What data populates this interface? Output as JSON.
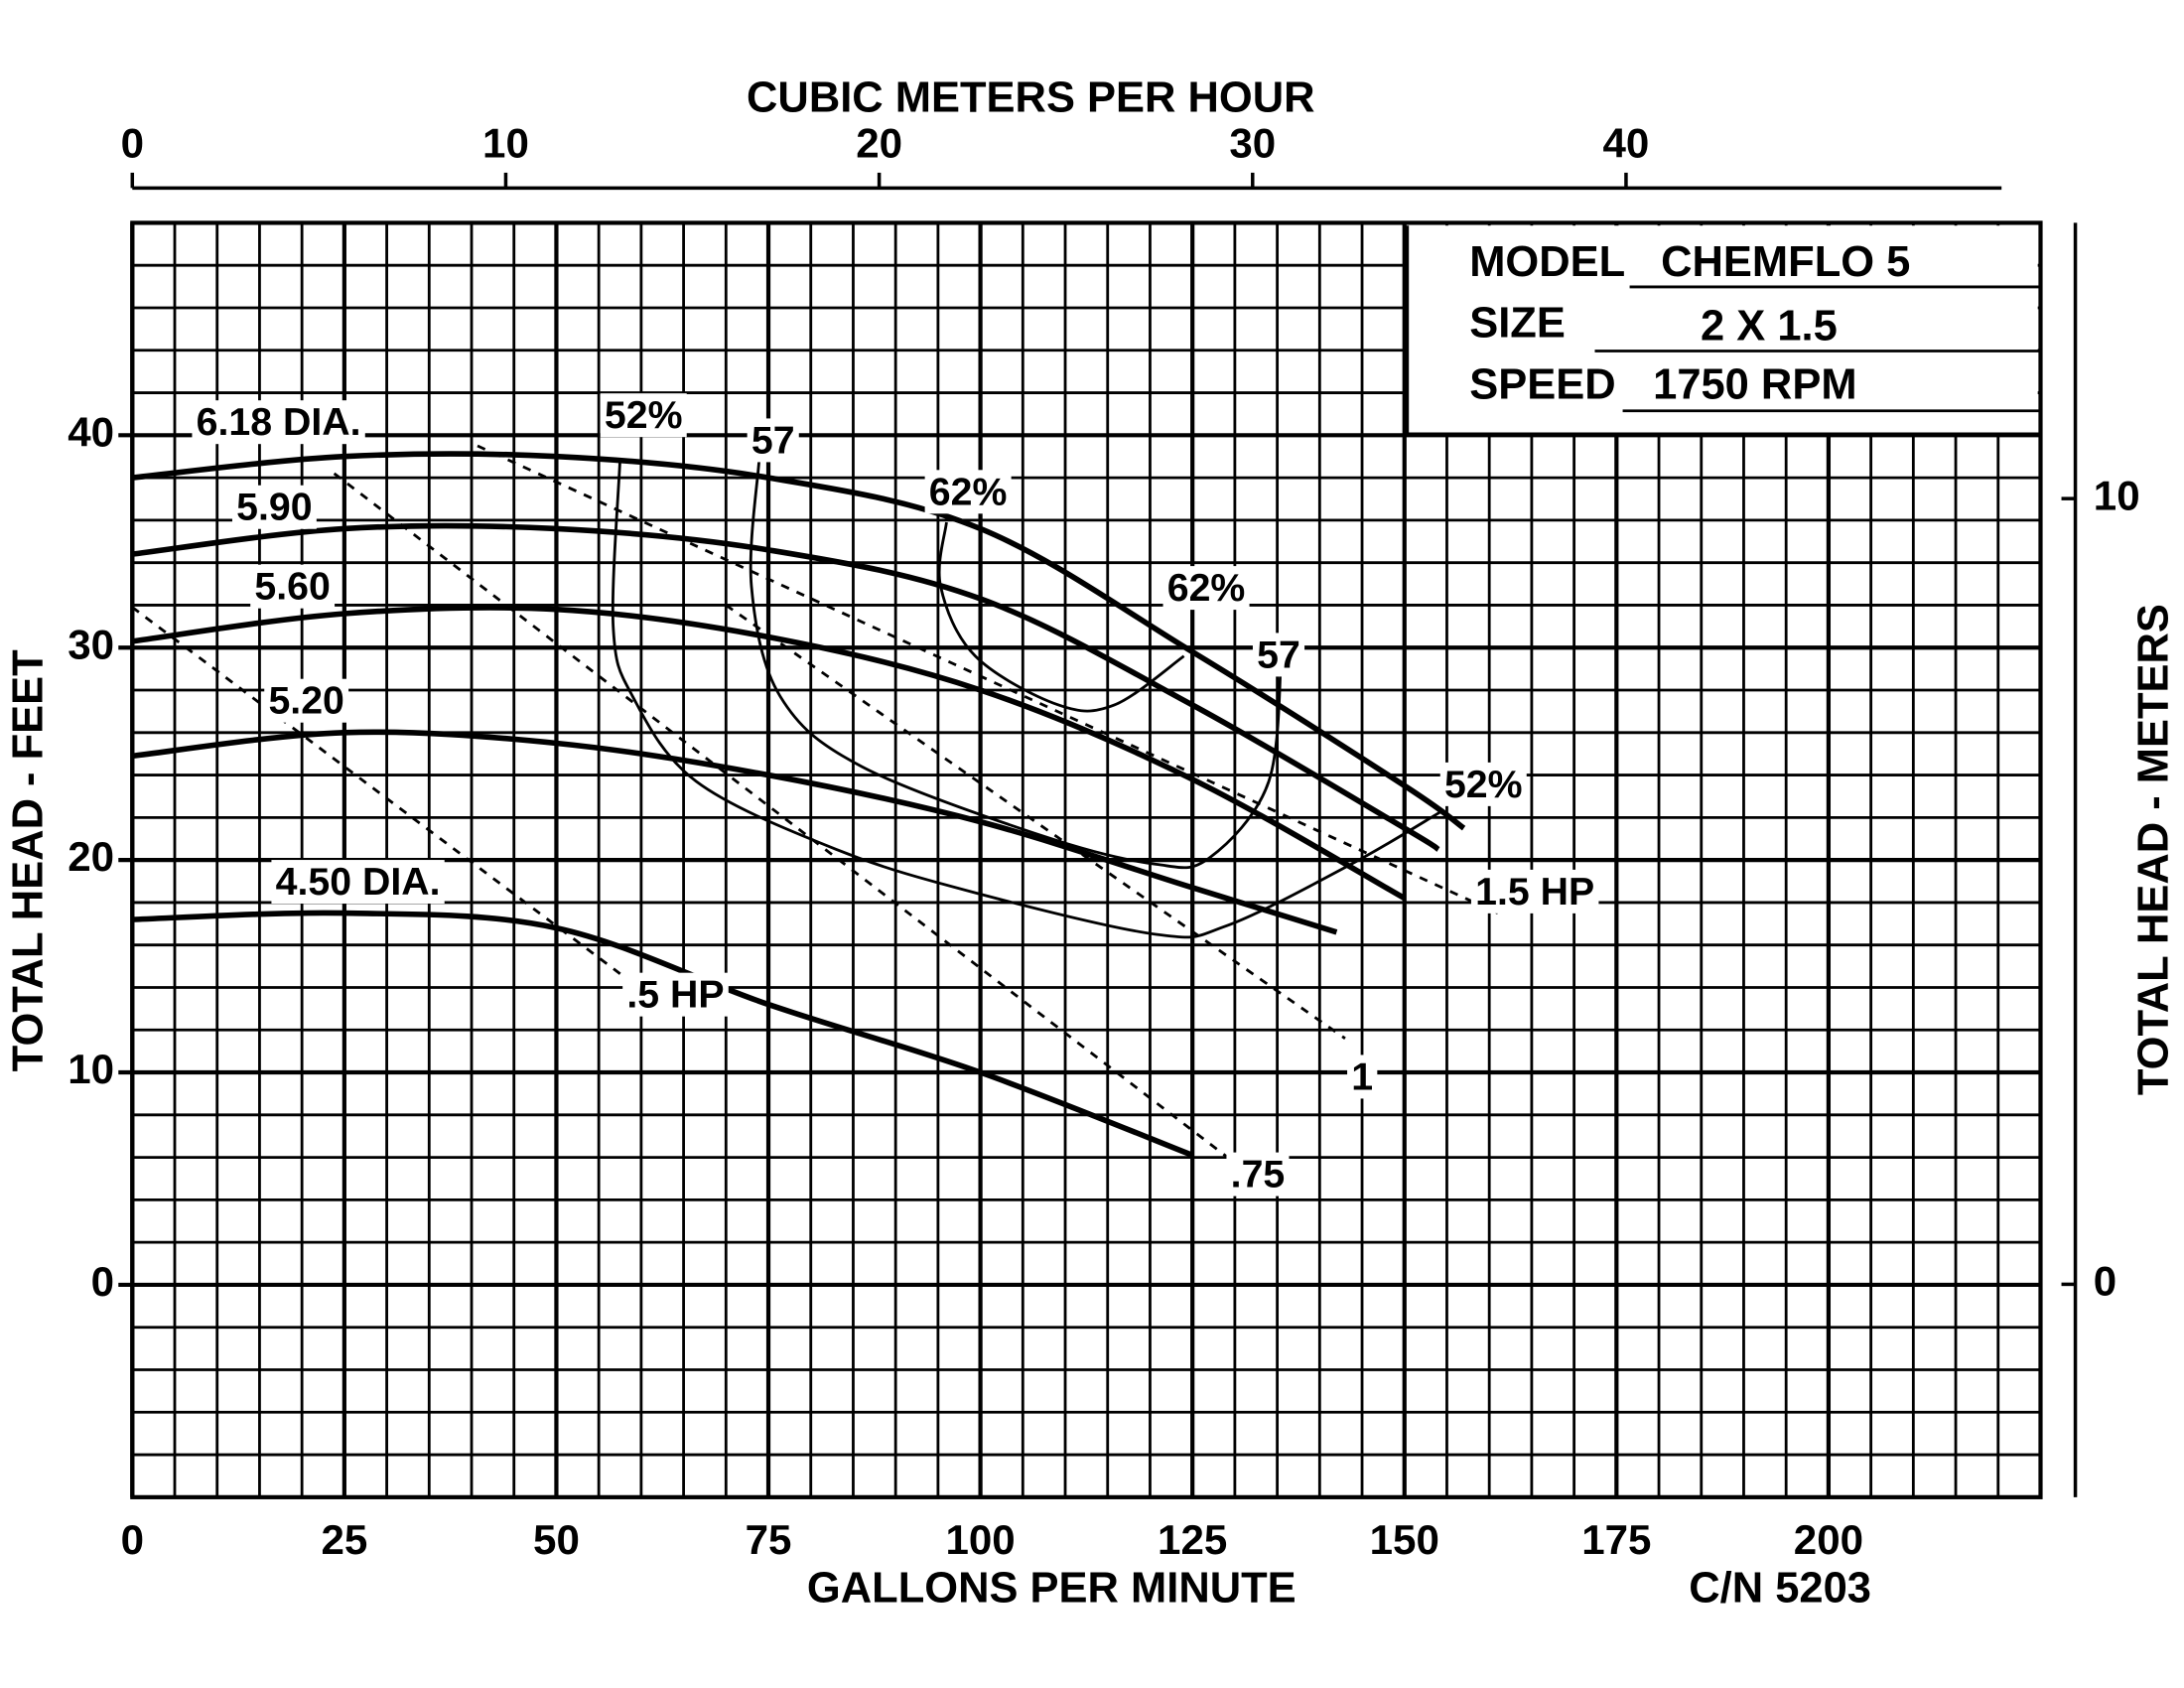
{
  "chart_data": {
    "type": "line",
    "x_label": "GALLONS PER MINUTE",
    "x2_label": "CUBIC METERS PER HOUR",
    "y_label": "TOTAL HEAD - FEET",
    "y2_label": "TOTAL HEAD - METERS",
    "note": "C/N 5203",
    "model_label": "MODEL",
    "model": "CHEMFLO 5",
    "size_label": "SIZE",
    "size": "2 X 1.5",
    "speed_label": "SPEED",
    "speed": "1750 RPM",
    "xlim": [
      0,
      225
    ],
    "xticks": [
      0,
      25,
      50,
      75,
      100,
      125,
      150,
      175,
      200
    ],
    "x2lim": [
      0,
      51.1
    ],
    "x2ticks": [
      0,
      10,
      20,
      30,
      40
    ],
    "ylim": [
      -10,
      50
    ],
    "yticks": [
      0,
      10,
      20,
      30,
      40
    ],
    "y2lim": [
      -2.71,
      13.51
    ],
    "y2ticks": [
      0,
      10
    ],
    "grid": true,
    "x_minor_step": 5,
    "y_minor_step": 2,
    "series": [
      {
        "name": "6.18 DIA.",
        "color": "#000000",
        "x": [
          0,
          25,
          50,
          75,
          100,
          125,
          150,
          157
        ],
        "values": [
          38.0,
          39.0,
          39.0,
          38.0,
          35.6,
          29.8,
          23.5,
          21.5
        ]
      },
      {
        "name": "5.90",
        "color": "#000000",
        "x": [
          0,
          25,
          50,
          75,
          100,
          125,
          150,
          154
        ],
        "values": [
          34.4,
          35.6,
          35.6,
          34.6,
          32.3,
          27.3,
          21.5,
          20.5
        ]
      },
      {
        "name": "5.60",
        "color": "#000000",
        "x": [
          0,
          25,
          50,
          75,
          100,
          125,
          150
        ],
        "values": [
          30.3,
          31.6,
          31.8,
          30.5,
          28.0,
          23.8,
          18.2
        ]
      },
      {
        "name": "5.20",
        "color": "#000000",
        "x": [
          0,
          25,
          50,
          75,
          100,
          125,
          142
        ],
        "values": [
          24.9,
          26.0,
          25.5,
          24.0,
          21.8,
          18.7,
          16.6
        ]
      },
      {
        "name": "4.50 DIA.",
        "color": "#000000",
        "x": [
          0,
          25,
          50,
          75,
          100,
          125
        ],
        "values": [
          17.2,
          17.5,
          16.8,
          13.2,
          10.0,
          6.1
        ]
      }
    ],
    "efficiency_curves": [
      {
        "name": "52%",
        "color": "#000000",
        "x": [
          57.5,
          56.7,
          59,
          66.5,
          83,
          99,
          120.7,
          129,
          143.7,
          154.4
        ],
        "values": [
          38.8,
          31,
          27.7,
          23.7,
          20.5,
          18.5,
          16.5,
          16.9,
          19.8,
          22.3
        ]
      },
      {
        "name": "57",
        "color": "#000000",
        "x": [
          73.9,
          73,
          76.4,
          86,
          107.6,
          120.7,
          127,
          134,
          135.5
        ],
        "values": [
          38.8,
          32.9,
          27.7,
          24.4,
          21.1,
          19.8,
          20.1,
          23.7,
          30
        ]
      },
      {
        "name": "62%",
        "color": "#000000",
        "x": [
          96,
          95.3,
          99.4,
          109.2,
          115.8,
          124
        ],
        "values": [
          35.9,
          32.9,
          29.6,
          27.3,
          27.3,
          29.6
        ]
      }
    ],
    "hp_lines": [
      {
        "name": ".5 HP",
        "color": "#000000",
        "x": [
          0,
          60
        ],
        "values": [
          31.9,
          13.9
        ]
      },
      {
        "name": ".75",
        "color": "#000000",
        "x": [
          23.8,
          129.8
        ],
        "values": [
          38.2,
          5.8
        ]
      },
      {
        "name": "1",
        "color": "#000000",
        "x": [
          70,
          143
        ],
        "values": [
          32,
          11.6
        ]
      },
      {
        "name": "1.5 HP",
        "color": "#000000",
        "x": [
          40.7,
          161
        ],
        "values": [
          39.5,
          17.5
        ]
      }
    ]
  }
}
